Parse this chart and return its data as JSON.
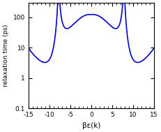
{
  "xlim": [
    -15,
    15
  ],
  "ylim": [
    0.1,
    300
  ],
  "xlabel": "βε(k)",
  "ylabel": "relaxation time (ps)",
  "yticks": [
    0.1,
    1,
    10,
    100
  ],
  "ytick_labels": [
    "0.1",
    "1",
    "10",
    "100"
  ],
  "xticks": [
    -15,
    -10,
    -5,
    0,
    5,
    10,
    15
  ],
  "line_color": "#0000cc",
  "line_width": 1.2,
  "figsize": [
    2.31,
    1.89
  ],
  "dpi": 100
}
